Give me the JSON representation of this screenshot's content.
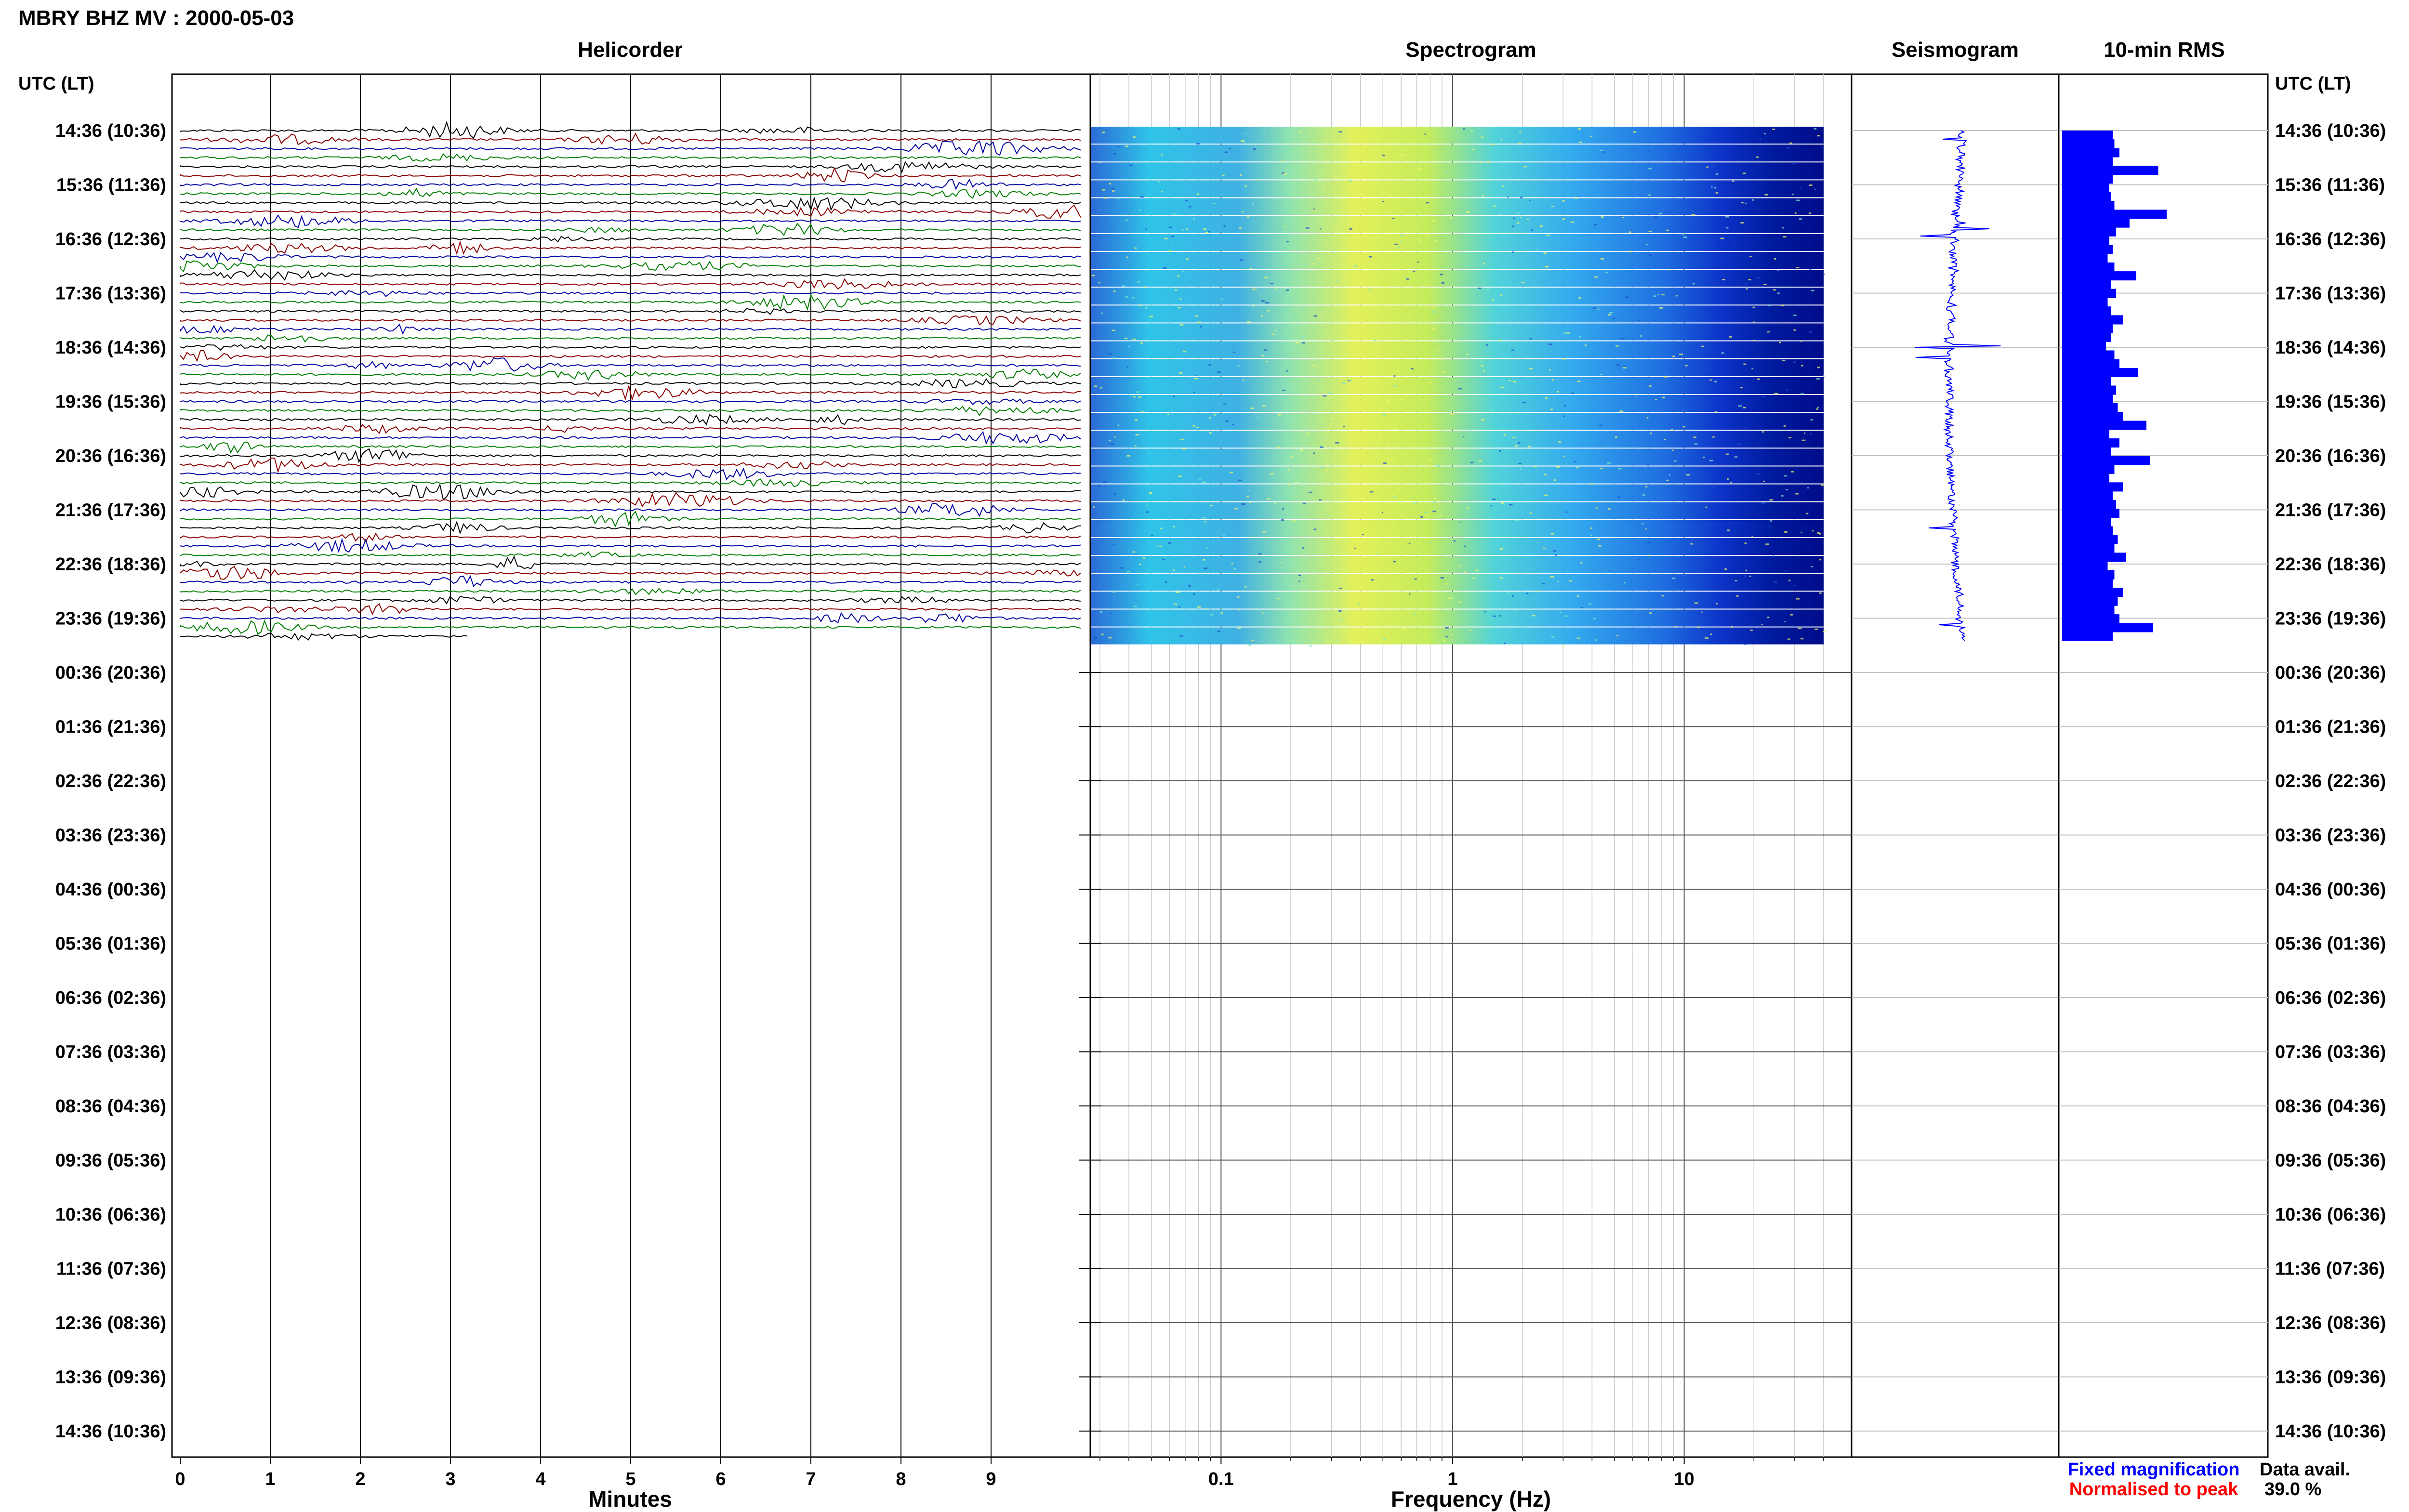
{
  "title": "MBRY BHZ MV : 2000-05-03",
  "utc_header_left": "UTC (LT)",
  "utc_header_right": "UTC (LT)",
  "panels": {
    "helicorder": "Helicorder",
    "spectrogram": "Spectrogram",
    "seismogram": "Seismogram",
    "rms": "10-min RMS"
  },
  "time_labels": [
    "14:36 (10:36)",
    "15:36 (11:36)",
    "16:36 (12:36)",
    "17:36 (13:36)",
    "18:36 (14:36)",
    "19:36 (15:36)",
    "20:36 (16:36)",
    "21:36 (17:36)",
    "22:36 (18:36)",
    "23:36 (19:36)",
    "00:36 (20:36)",
    "01:36 (21:36)",
    "02:36 (22:36)",
    "03:36 (23:36)",
    "04:36 (00:36)",
    "05:36 (01:36)",
    "06:36 (02:36)",
    "07:36 (03:36)",
    "08:36 (04:36)",
    "09:36 (05:36)",
    "10:36 (06:36)",
    "11:36 (07:36)",
    "12:36 (08:36)",
    "13:36 (09:36)",
    "14:36 (10:36)"
  ],
  "helicorder_axis": {
    "ticks": [
      "0",
      "1",
      "2",
      "3",
      "4",
      "5",
      "6",
      "7",
      "8",
      "9"
    ],
    "label": "Minutes"
  },
  "spectrogram_axis": {
    "ticks": [
      "0.1",
      "1",
      "10"
    ],
    "label": "Frequency (Hz)"
  },
  "legend": {
    "fixed": "Fixed magnification",
    "normalised": "Normalised to peak",
    "fixed_color": "#0000ff",
    "normalised_color": "#ff0000"
  },
  "data_avail": {
    "label": "Data avail.",
    "value": "39.0 %"
  },
  "colors": {
    "trace_cycle": [
      "#000000",
      "#8b0000",
      "#0000a0",
      "#008000"
    ],
    "rms_bar": "#0000ff",
    "seismogram": "#0000ff"
  },
  "chart_data": {
    "type": "helicorder",
    "helicorder_lines_recorded": 57,
    "helicorder_last_line_minutes": 3.2,
    "minutes_per_line": 10,
    "spectrogram_freq_range_hz": [
      0.03,
      40
    ],
    "spectrogram_scale": "log",
    "rms_values": [
      0.3,
      0.31,
      0.34,
      0.3,
      0.57,
      0.3,
      0.28,
      0.29,
      0.31,
      0.62,
      0.4,
      0.32,
      0.28,
      0.3,
      0.27,
      0.31,
      0.44,
      0.29,
      0.32,
      0.27,
      0.29,
      0.36,
      0.3,
      0.29,
      0.26,
      0.31,
      0.34,
      0.45,
      0.29,
      0.32,
      0.3,
      0.33,
      0.36,
      0.5,
      0.28,
      0.34,
      0.29,
      0.52,
      0.31,
      0.28,
      0.36,
      0.3,
      0.32,
      0.34,
      0.29,
      0.3,
      0.33,
      0.31,
      0.38,
      0.27,
      0.31,
      0.3,
      0.36,
      0.33,
      0.31,
      0.34,
      0.54,
      0.3
    ]
  }
}
